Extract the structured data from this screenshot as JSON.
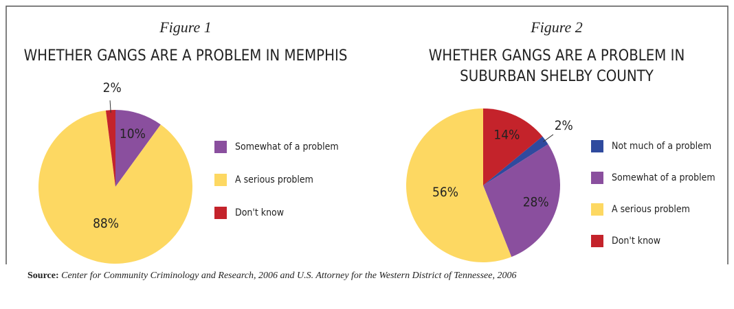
{
  "chart_data": [
    {
      "type": "pie",
      "figure": "Figure 1",
      "title": [
        "WHETHER GANGS ARE A PROBLEM IN MEMPHIS"
      ],
      "categories": [
        "Somewhat of a problem",
        "A serious problem",
        "Don't know"
      ],
      "values": [
        10,
        88,
        2
      ],
      "value_labels": [
        "10%",
        "88%",
        "2%"
      ],
      "colors": [
        "#8a4f9e",
        "#fdd862",
        "#c4232b"
      ]
    },
    {
      "type": "pie",
      "figure": "Figure 2",
      "title": [
        "WHETHER GANGS ARE A PROBLEM IN",
        "SUBURBAN SHELBY COUNTY"
      ],
      "categories": [
        "Not much of a problem",
        "Somewhat of a problem",
        "A serious problem",
        "Don't know"
      ],
      "values": [
        2,
        28,
        56,
        14
      ],
      "value_labels": [
        "2%",
        "28%",
        "56%",
        "14%"
      ],
      "colors": [
        "#2f4a9e",
        "#8a4f9e",
        "#fdd862",
        "#c4232b"
      ]
    }
  ],
  "source": {
    "label": "Source:",
    "text": "Center for Community Criminology and Research, 2006 and U.S. Attorney for the Western District of Tennessee, 2006"
  }
}
